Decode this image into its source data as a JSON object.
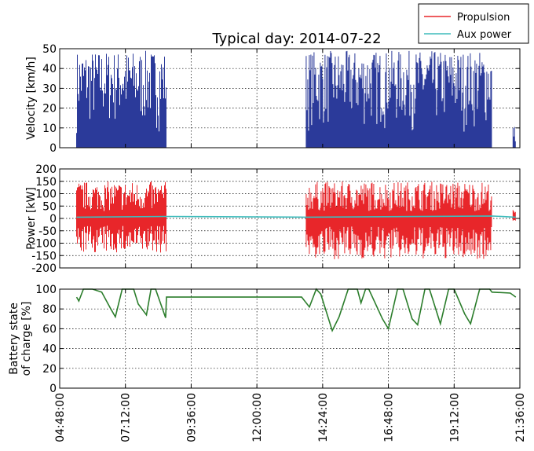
{
  "figure": {
    "title": "Typical day: 2014-07-22",
    "legend": [
      {
        "label": "Propulsion",
        "color": "#e8262a"
      },
      {
        "label": "Aux power",
        "color": "#3fbcbc"
      }
    ]
  },
  "chart_data": [
    {
      "type": "line",
      "ylabel": "Velocity [km/h]",
      "ylim": [
        0,
        50
      ],
      "yticks": [
        0,
        10,
        20,
        30,
        40,
        50
      ],
      "xlim": [
        "04:48:00",
        "21:36:00"
      ],
      "grid": true,
      "series": [
        {
          "name": "",
          "color": "#2b3a9a",
          "segments": [
            {
              "x": [
                "05:25:00",
                "08:42:00"
              ],
              "ymin": 0,
              "ymax": 49
            },
            {
              "x": [
                "13:48:00",
                "20:35:00"
              ],
              "ymin": 0,
              "ymax": 49
            },
            {
              "x": [
                "21:21:00",
                "21:27:00"
              ],
              "ymin": 0,
              "ymax": 11
            }
          ]
        }
      ]
    },
    {
      "type": "line",
      "ylabel": "Power [kW]",
      "ylim": [
        -200,
        200
      ],
      "yticks": [
        200,
        150,
        100,
        50,
        0,
        -50,
        -100,
        -150,
        -200
      ],
      "grid": true,
      "series": [
        {
          "name": "Propulsion",
          "color": "#e8262a",
          "segments": [
            {
              "x": [
                "05:25:00",
                "08:42:00"
              ],
              "ymin": -140,
              "ymax": 150
            },
            {
              "x": [
                "13:48:00",
                "20:35:00"
              ],
              "ymin": -165,
              "ymax": 150
            },
            {
              "x": [
                "21:21:00",
                "21:27:00"
              ],
              "ymin": -10,
              "ymax": 35
            }
          ]
        },
        {
          "name": "Aux power",
          "color": "#3fbcbc",
          "points": [
            [
              "05:25:00",
              5
            ],
            [
              "08:42:00",
              8
            ],
            [
              "13:48:00",
              5
            ],
            [
              "20:35:00",
              10
            ],
            [
              "21:27:00",
              5
            ]
          ]
        }
      ]
    },
    {
      "type": "line",
      "ylabel": "Battery state of charge [%]",
      "ylabel_lines": [
        "Battery state",
        "of charge [%]"
      ],
      "ylim": [
        0,
        100
      ],
      "yticks": [
        0,
        20,
        40,
        60,
        80,
        100
      ],
      "xticks": [
        "04:48:00",
        "07:12:00",
        "09:36:00",
        "12:00:00",
        "14:24:00",
        "16:48:00",
        "19:12:00",
        "21:36:00"
      ],
      "grid": true,
      "series": [
        {
          "name": "",
          "color": "#2b7d2b",
          "points": [
            [
              "05:25:00",
              92
            ],
            [
              "05:30:00",
              88
            ],
            [
              "05:40:00",
              100
            ],
            [
              "06:00:00",
              100
            ],
            [
              "06:20:00",
              97
            ],
            [
              "06:40:00",
              80
            ],
            [
              "06:50:00",
              72
            ],
            [
              "07:05:00",
              100
            ],
            [
              "07:30:00",
              100
            ],
            [
              "07:40:00",
              85
            ],
            [
              "07:58:00",
              74
            ],
            [
              "08:08:00",
              100
            ],
            [
              "08:18:00",
              100
            ],
            [
              "08:40:00",
              71
            ],
            [
              "08:42:00",
              92
            ],
            [
              "13:38:00",
              92
            ],
            [
              "13:55:00",
              82
            ],
            [
              "14:10:00",
              100
            ],
            [
              "14:20:00",
              95
            ],
            [
              "14:45:00",
              58
            ],
            [
              "15:00:00",
              72
            ],
            [
              "15:20:00",
              100
            ],
            [
              "15:40:00",
              100
            ],
            [
              "15:48:00",
              86
            ],
            [
              "15:58:00",
              100
            ],
            [
              "16:05:00",
              100
            ],
            [
              "16:35:00",
              70
            ],
            [
              "16:48:00",
              60
            ],
            [
              "17:08:00",
              100
            ],
            [
              "17:20:00",
              100
            ],
            [
              "17:40:00",
              70
            ],
            [
              "17:52:00",
              64
            ],
            [
              "18:08:00",
              100
            ],
            [
              "18:18:00",
              100
            ],
            [
              "18:42:00",
              65
            ],
            [
              "19:00:00",
              100
            ],
            [
              "19:12:00",
              100
            ],
            [
              "19:35:00",
              75
            ],
            [
              "19:48:00",
              65
            ],
            [
              "20:08:00",
              100
            ],
            [
              "20:30:00",
              100
            ],
            [
              "20:35:00",
              97
            ],
            [
              "21:15:00",
              96
            ],
            [
              "21:27:00",
              92
            ]
          ]
        }
      ]
    }
  ]
}
